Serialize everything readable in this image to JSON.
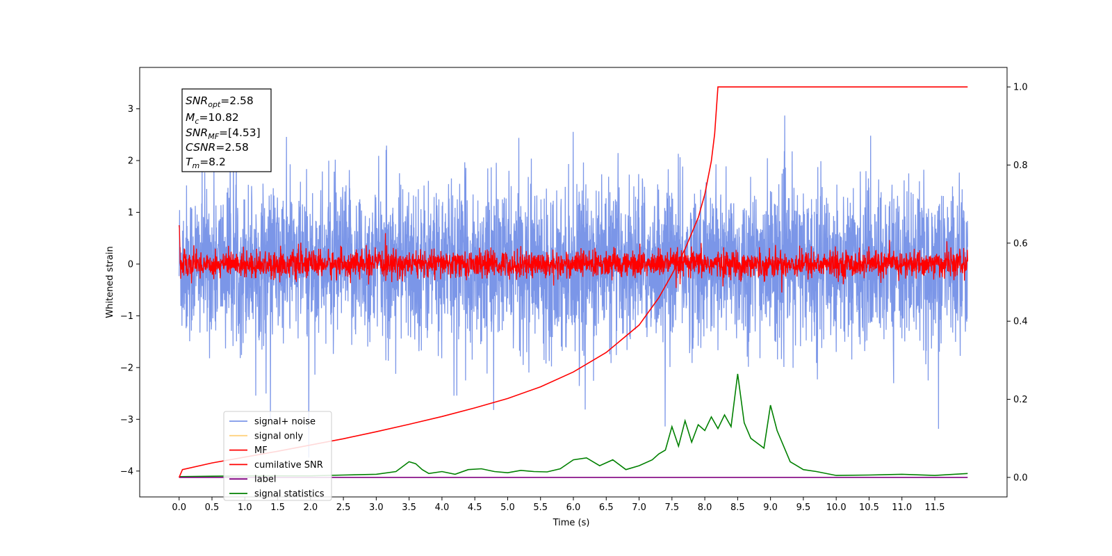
{
  "chart_data": {
    "type": "line",
    "xlabel": "Time (s)",
    "ylabel": "Whitened strain",
    "xlim": [
      -0.6,
      12.6
    ],
    "ylim": [
      -4.5,
      3.8
    ],
    "y2lim": [
      -0.05,
      1.05
    ],
    "x_ticks": [
      "0.0",
      "0.5",
      "1.0",
      "1.5",
      "2.0",
      "2.5",
      "3.0",
      "3.5",
      "4.0",
      "4.5",
      "5.0",
      "5.5",
      "6.0",
      "6.5",
      "7.0",
      "7.5",
      "8.0",
      "8.5",
      "9.0",
      "9.5",
      "10.0",
      "10.5",
      "11.0",
      "11.5"
    ],
    "y_ticks": [
      "3",
      "2",
      "1",
      "0",
      "−1",
      "−2",
      "−3",
      "−4"
    ],
    "y2_ticks": [
      "1.0",
      "0.8",
      "0.6",
      "0.4",
      "0.2",
      "0.0"
    ],
    "info_box": {
      "snr_opt": {
        "main": "SNR",
        "sub": "opt",
        "value": "=2.58"
      },
      "mc": {
        "main": "M",
        "sub": "c",
        "value": "=10.82"
      },
      "snr_mf": {
        "main": "SNR",
        "sub": "MF",
        "value": "=[4.53]"
      },
      "csnr": {
        "main": "CSNR",
        "value": "=2.58"
      },
      "tm": {
        "main": "T",
        "sub": "m",
        "value": "=8.2"
      }
    },
    "series": [
      {
        "name": "signal+ noise",
        "color": "#7b96e8",
        "axis": "left",
        "stats": {
          "x_range": [
            0,
            12
          ],
          "envelope_typical": [
            -1.5,
            1.5
          ],
          "peak_max": 3.4,
          "peak_min": -4.0
        }
      },
      {
        "name": "signal only",
        "color": "#ffd27f",
        "axis": "left"
      },
      {
        "name": "MF",
        "color": "#ff0000",
        "axis": "left",
        "stats": {
          "x_range": [
            0,
            12
          ],
          "envelope_typical": [
            -0.35,
            0.35
          ],
          "start_value": 0.9
        }
      },
      {
        "name": "cumilative SNR",
        "color": "#ff0000",
        "axis": "right",
        "x": [
          0,
          0.05,
          0.5,
          1.0,
          1.5,
          2.0,
          2.5,
          3.0,
          3.5,
          4.0,
          4.5,
          5.0,
          5.5,
          6.0,
          6.5,
          7.0,
          7.3,
          7.5,
          7.7,
          7.9,
          8.0,
          8.1,
          8.15,
          8.2,
          12.0
        ],
        "values": [
          0.0,
          0.02,
          0.037,
          0.052,
          0.067,
          0.083,
          0.099,
          0.117,
          0.136,
          0.156,
          0.178,
          0.202,
          0.232,
          0.27,
          0.32,
          0.39,
          0.46,
          0.52,
          0.585,
          0.665,
          0.725,
          0.81,
          0.88,
          1.0,
          1.0
        ]
      },
      {
        "name": "label",
        "color": "#800080",
        "axis": "right",
        "x": [
          0,
          12
        ],
        "values": [
          0.0,
          0.0
        ]
      },
      {
        "name": "signal statistics",
        "color": "#008000",
        "axis": "right",
        "x": [
          0,
          0.5,
          1.0,
          1.5,
          2.0,
          2.5,
          3.0,
          3.3,
          3.5,
          3.6,
          3.7,
          3.8,
          4.0,
          4.2,
          4.4,
          4.6,
          4.8,
          5.0,
          5.2,
          5.4,
          5.6,
          5.8,
          6.0,
          6.2,
          6.4,
          6.6,
          6.8,
          7.0,
          7.2,
          7.3,
          7.4,
          7.5,
          7.6,
          7.7,
          7.8,
          7.9,
          8.0,
          8.1,
          8.2,
          8.3,
          8.4,
          8.5,
          8.6,
          8.7,
          8.9,
          9.0,
          9.1,
          9.3,
          9.5,
          9.7,
          10.0,
          10.5,
          11.0,
          11.5,
          12.0
        ],
        "values": [
          0.002,
          0.003,
          0.004,
          0.004,
          0.004,
          0.006,
          0.008,
          0.015,
          0.04,
          0.035,
          0.02,
          0.01,
          0.015,
          0.008,
          0.02,
          0.022,
          0.015,
          0.012,
          0.018,
          0.015,
          0.014,
          0.022,
          0.045,
          0.05,
          0.03,
          0.045,
          0.02,
          0.03,
          0.045,
          0.06,
          0.07,
          0.13,
          0.08,
          0.145,
          0.09,
          0.135,
          0.12,
          0.155,
          0.125,
          0.16,
          0.13,
          0.265,
          0.14,
          0.1,
          0.075,
          0.185,
          0.12,
          0.04,
          0.02,
          0.015,
          0.005,
          0.006,
          0.008,
          0.005,
          0.01
        ]
      }
    ],
    "legend_position": "lower-left"
  }
}
